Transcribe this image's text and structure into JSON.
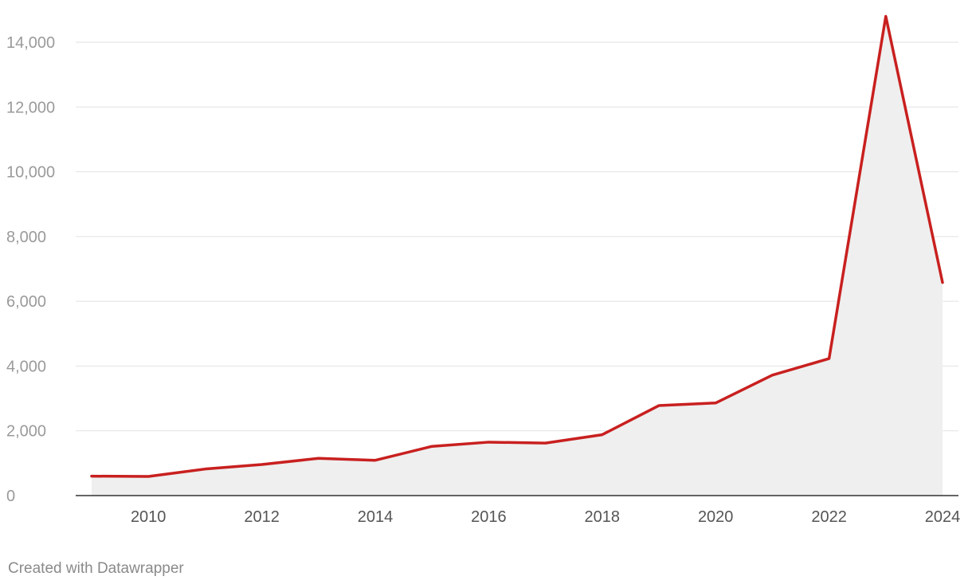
{
  "credit": "Created with Datawrapper",
  "colors": {
    "line": "#c8201f",
    "area": "#efefef"
  },
  "chart_data": {
    "type": "area",
    "title": "",
    "xlabel": "",
    "ylabel": "",
    "x": [
      2009,
      2010,
      2011,
      2012,
      2013,
      2014,
      2015,
      2016,
      2017,
      2018,
      2019,
      2020,
      2021,
      2022,
      2023,
      2024
    ],
    "series": [
      {
        "values": [
          600,
          590,
          820,
          960,
          1150,
          1090,
          1520,
          1650,
          1620,
          1880,
          2780,
          2860,
          3720,
          4230,
          14800,
          6580
        ]
      }
    ],
    "xlim": [
      2008.7,
      2024.3
    ],
    "ylim": [
      0,
      14000
    ],
    "y_ticks": [
      0,
      2000,
      4000,
      6000,
      8000,
      10000,
      12000,
      14000
    ],
    "y_tick_labels": [
      "0",
      "2,000",
      "4,000",
      "6,000",
      "8,000",
      "10,000",
      "12,000",
      "14,000"
    ],
    "x_ticks": [
      2010,
      2012,
      2014,
      2016,
      2018,
      2020,
      2022,
      2024
    ],
    "x_tick_labels": [
      "2010",
      "2012",
      "2014",
      "2016",
      "2018",
      "2020",
      "2022",
      "2024"
    ],
    "grid": true,
    "legend": "none"
  }
}
